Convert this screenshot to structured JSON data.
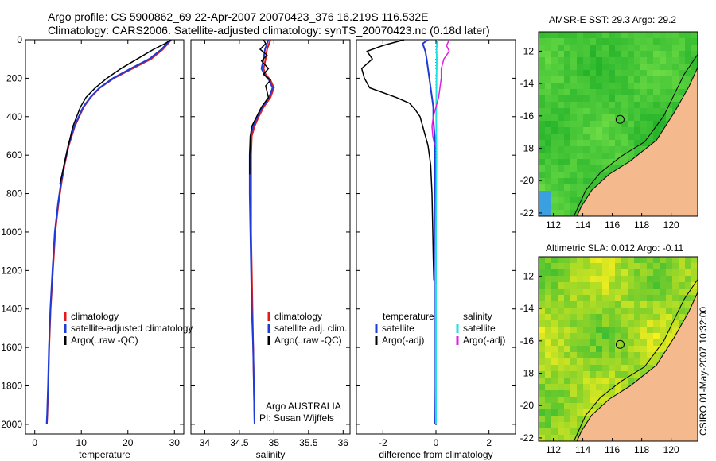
{
  "header": {
    "line1": "Argo profile: CS 5900862_69 22-Apr-2007 20070423_376 16.219S 116.532E",
    "line2": "Climatology: CARS2006. Satellite-adjusted climatology: synTS_20070423.nc (0.18d later)"
  },
  "map_titles": {
    "sst": "AMSR-E SST: 29.3 Argo: 29.2",
    "sla": "Altimetric SLA: 0.012 Argo: -0.11"
  },
  "footer": {
    "credit": "CSIRO 01-May-2007 10:32:00",
    "group": "Argo AUSTRALIA",
    "pi": "PI: Susan Wijffels"
  },
  "colors": {
    "climatology": "#e31a1c",
    "satellite": "#1f3bd6",
    "argo": "#000000",
    "sal_satellite": "#22e0e0",
    "sal_argo": "#e020e0",
    "land": "#f4b98c"
  },
  "chart_data": [
    {
      "id": "temperature",
      "type": "line",
      "title": "",
      "xlabel": "temperature",
      "ylabel": "",
      "xlim": [
        -2,
        32
      ],
      "ylim": [
        2050,
        0
      ],
      "xticks": [
        0,
        10,
        20,
        30
      ],
      "yticks": [
        0,
        200,
        400,
        600,
        800,
        1000,
        1200,
        1400,
        1600,
        1800,
        2000
      ],
      "legend": [
        "climatology",
        "satellite-adjusted climatology",
        "Argo(..raw -QC)"
      ],
      "legend_position": "lower-right",
      "series": [
        {
          "name": "climatology",
          "color": "#e31a1c",
          "x": [
            29.3,
            28.6,
            27.5,
            25.0,
            21.0,
            17.0,
            14.0,
            12.0,
            10.5,
            8.6,
            7.3,
            6.4,
            5.7,
            5.1,
            4.4,
            3.9,
            3.4,
            3.1,
            2.9,
            2.7,
            2.6
          ],
          "y": [
            0,
            20,
            50,
            100,
            150,
            200,
            250,
            300,
            350,
            450,
            550,
            650,
            750,
            850,
            1000,
            1200,
            1400,
            1600,
            1800,
            1950,
            2000
          ]
        },
        {
          "name": "satellite-adjusted climatology",
          "color": "#1f3bd6",
          "x": [
            29.3,
            28.4,
            27.2,
            24.6,
            20.6,
            16.8,
            13.9,
            11.9,
            10.4,
            8.5,
            7.2,
            6.3,
            5.6,
            5.0,
            4.3,
            3.8,
            3.35,
            3.05,
            2.85,
            2.65,
            2.55
          ],
          "y": [
            0,
            20,
            50,
            100,
            150,
            200,
            250,
            300,
            350,
            450,
            550,
            650,
            750,
            850,
            1000,
            1200,
            1400,
            1600,
            1800,
            1950,
            2000
          ]
        },
        {
          "name": "Argo(..raw -QC)",
          "color": "#000000",
          "x": [
            29.2,
            28.0,
            25.5,
            22.0,
            18.5,
            15.5,
            13.0,
            11.0,
            9.8,
            8.2,
            7.2,
            6.3,
            5.4
          ],
          "y": [
            0,
            20,
            50,
            100,
            150,
            200,
            250,
            300,
            350,
            450,
            550,
            650,
            750
          ]
        }
      ]
    },
    {
      "id": "salinity",
      "type": "line",
      "xlabel": "salinity",
      "xlim": [
        33.8,
        36.1
      ],
      "ylim": [
        2050,
        0
      ],
      "xticks": [
        34,
        34.5,
        35,
        35.5,
        36
      ],
      "legend": [
        "climatology",
        "satellite adj. clim.",
        "Argo(..raw -QC)"
      ],
      "legend_position": "lower-right",
      "series": [
        {
          "name": "climatology",
          "color": "#e31a1c",
          "x": [
            34.95,
            34.93,
            34.9,
            34.88,
            34.85,
            34.88,
            34.95,
            35.0,
            34.95,
            34.85,
            34.78,
            34.72,
            34.68,
            34.67,
            34.67,
            34.67,
            34.68,
            34.69,
            34.7,
            34.71,
            34.72
          ],
          "y": [
            0,
            20,
            50,
            100,
            150,
            180,
            210,
            250,
            300,
            350,
            400,
            450,
            500,
            600,
            800,
            1000,
            1200,
            1400,
            1600,
            1800,
            2000
          ]
        },
        {
          "name": "satellite adj. clim.",
          "color": "#1f3bd6",
          "x": [
            34.92,
            34.9,
            34.87,
            34.85,
            34.82,
            34.86,
            34.93,
            34.98,
            34.93,
            34.83,
            34.76,
            34.7,
            34.66,
            34.65,
            34.65,
            34.66,
            34.67,
            34.68,
            34.7,
            34.71,
            34.72
          ],
          "y": [
            0,
            20,
            50,
            100,
            150,
            180,
            210,
            250,
            300,
            350,
            400,
            450,
            500,
            600,
            800,
            1000,
            1200,
            1400,
            1600,
            1800,
            2000
          ]
        },
        {
          "name": "Argo(..raw -QC)",
          "color": "#000000",
          "x": [
            34.85,
            34.88,
            34.8,
            34.9,
            34.82,
            34.92,
            34.85,
            34.95,
            34.88,
            34.92,
            34.82,
            34.75,
            34.68,
            34.66,
            34.65,
            34.65
          ],
          "y": [
            0,
            20,
            50,
            80,
            110,
            150,
            180,
            210,
            240,
            300,
            350,
            400,
            450,
            500,
            600,
            700
          ]
        }
      ]
    },
    {
      "id": "difference",
      "type": "line",
      "xlabel": "difference from climatology",
      "xlim": [
        -3,
        3
      ],
      "ylim": [
        2050,
        0
      ],
      "xticks": [
        -2,
        0,
        2
      ],
      "legend": [
        "temperature",
        "satellite",
        "Argo(-adj)",
        "salinity",
        "satellite",
        "Argo(-adj)"
      ],
      "legend_position": "lower-center",
      "series": [
        {
          "name": "temperature satellite",
          "color": "#1f3bd6",
          "x": [
            -0.3,
            -0.5,
            -0.4,
            -0.35,
            -0.3,
            -0.25,
            -0.2,
            -0.15,
            -0.1,
            -0.1,
            -0.08,
            -0.05,
            -0.04,
            -0.03,
            -0.02,
            -0.02,
            -0.03
          ],
          "y": [
            0,
            20,
            60,
            100,
            150,
            200,
            250,
            300,
            350,
            400,
            450,
            500,
            600,
            800,
            1200,
            1800,
            2000
          ]
        },
        {
          "name": "temperature Argo(-adj)",
          "color": "#000000",
          "x": [
            -1.2,
            -2.0,
            -2.6,
            -2.4,
            -2.8,
            -2.7,
            -2.5,
            -1.5,
            -1.0,
            -0.8,
            -0.6,
            -0.5,
            -0.3,
            -0.2,
            -0.15,
            -0.12,
            -0.1,
            -0.08
          ],
          "y": [
            0,
            30,
            60,
            100,
            150,
            200,
            250,
            300,
            330,
            360,
            400,
            450,
            550,
            650,
            800,
            1000,
            1150,
            1250
          ]
        },
        {
          "name": "salinity satellite",
          "color": "#22e0e0",
          "x": [
            0.05,
            0.02,
            0.03,
            0.02,
            0.01,
            0.02,
            0.01,
            0.0,
            0.0,
            0.0,
            0.0
          ],
          "y": [
            0,
            50,
            100,
            200,
            400,
            600,
            800,
            1000,
            1400,
            1800,
            2000
          ]
        },
        {
          "name": "salinity Argo(-adj)",
          "color": "#e020e0",
          "x": [
            0.5,
            0.4,
            0.5,
            0.3,
            0.2,
            0.2,
            0.1,
            -0.1,
            -0.15,
            -0.12,
            -0.05
          ],
          "y": [
            0,
            30,
            60,
            100,
            150,
            200,
            300,
            400,
            450,
            500,
            550
          ]
        }
      ]
    },
    {
      "id": "sst-map",
      "type": "heatmap",
      "title": "AMSR-E SST: 29.3 Argo: 29.2",
      "xlim": [
        111,
        121.8
      ],
      "ylim": [
        -22.2,
        -10.8
      ],
      "xticks": [
        112,
        114,
        116,
        118,
        120
      ],
      "yticks": [
        -12,
        -14,
        -16,
        -18,
        -20,
        -22
      ],
      "marker": {
        "lon": 116.532,
        "lat": -16.219
      }
    },
    {
      "id": "sla-map",
      "type": "heatmap",
      "title": "Altimetric SLA: 0.012 Argo: -0.11",
      "xlim": [
        111,
        121.8
      ],
      "ylim": [
        -22.2,
        -10.8
      ],
      "xticks": [
        112,
        114,
        116,
        118,
        120
      ],
      "yticks": [
        -12,
        -14,
        -16,
        -18,
        -20,
        -22
      ],
      "marker": {
        "lon": 116.532,
        "lat": -16.219
      }
    }
  ]
}
